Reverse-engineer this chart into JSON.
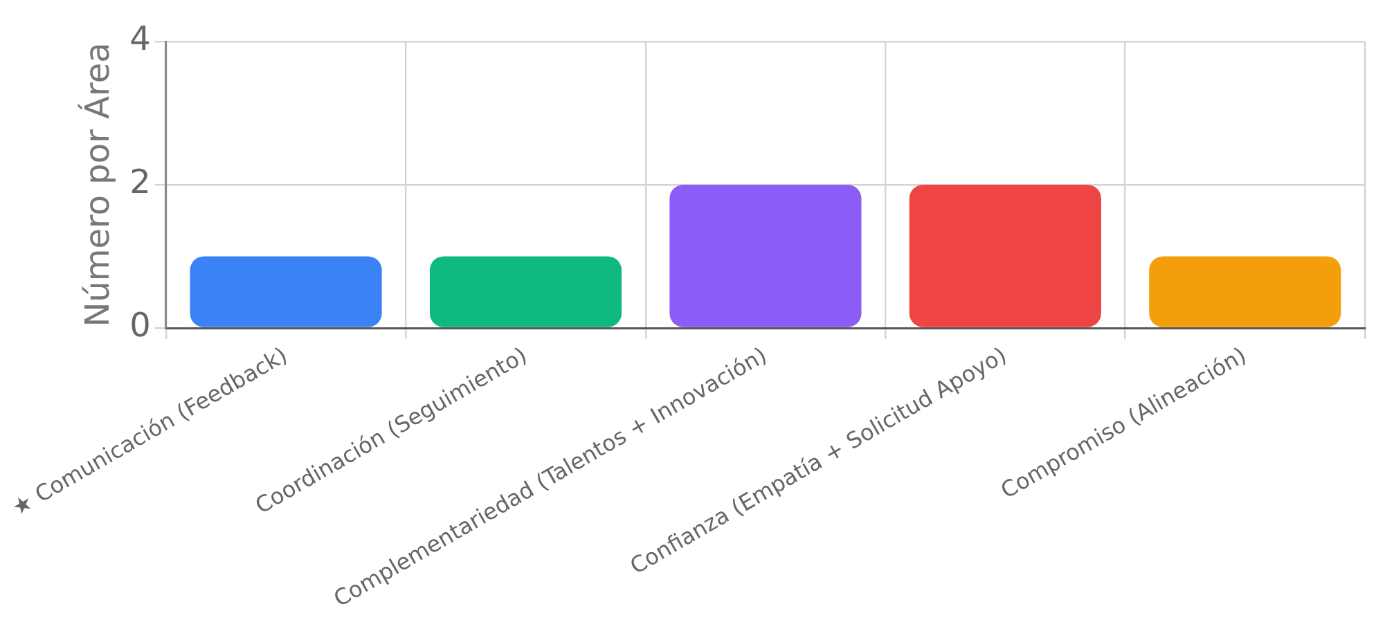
{
  "chart_data": {
    "type": "bar",
    "ylabel": "Número por Área",
    "categories": [
      "★ Comunicación (Feedback)",
      "Coordinación (Seguimiento)",
      "Complementariedad (Talentos + Innovación)",
      "Confianza (Empatía + Solicitud Apoyo)",
      "Compromiso (Alineación)"
    ],
    "values": [
      1,
      1,
      2,
      2,
      1
    ],
    "colors": [
      "#3b82f6",
      "#10b981",
      "#8b5cf6",
      "#ef4444",
      "#f59e0b"
    ],
    "ylim": [
      0,
      4
    ],
    "yticks": [
      0,
      2,
      4
    ],
    "grid": true,
    "legend": false
  }
}
